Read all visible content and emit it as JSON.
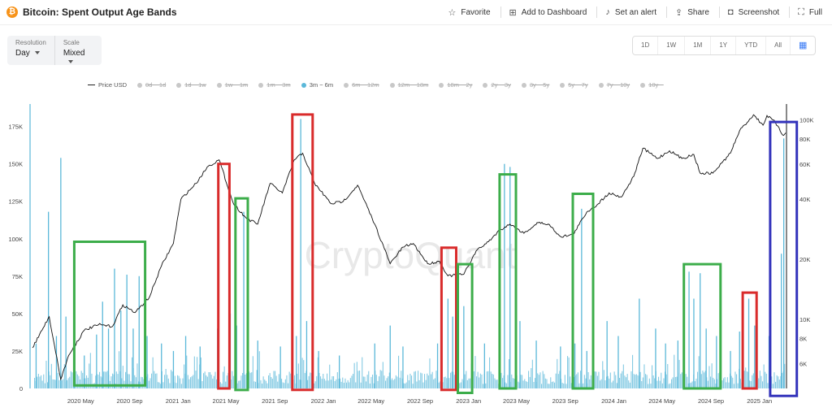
{
  "header": {
    "title": "Bitcoin: Spent Output Age Bands",
    "actions": [
      {
        "label": "Favorite",
        "icon": "star-icon"
      },
      {
        "label": "Add to Dashboard",
        "icon": "dashboard-icon"
      },
      {
        "label": "Set an alert",
        "icon": "bell-icon"
      },
      {
        "label": "Share",
        "icon": "share-icon"
      },
      {
        "label": "Screenshot",
        "icon": "camera-icon"
      },
      {
        "label": "Full",
        "icon": "fullscreen-icon"
      }
    ]
  },
  "controls": {
    "resolution_label": "Resolution",
    "resolution_value": "Day",
    "scale_label": "Scale",
    "scale_value": "Mixed"
  },
  "ranges": [
    "1D",
    "1W",
    "1M",
    "1Y",
    "YTD",
    "All"
  ],
  "legend": [
    {
      "label": "Price USD",
      "active": true,
      "kind": "line"
    },
    {
      "label": "0d ~ 1d",
      "active": false
    },
    {
      "label": "1d ~ 1w",
      "active": false
    },
    {
      "label": "1w ~ 1m",
      "active": false
    },
    {
      "label": "1m ~ 3m",
      "active": false
    },
    {
      "label": "3m ~ 6m",
      "active": true
    },
    {
      "label": "6m ~ 12m",
      "active": false
    },
    {
      "label": "12m ~ 18m",
      "active": false
    },
    {
      "label": "18m ~ 2y",
      "active": false
    },
    {
      "label": "2y ~ 3y",
      "active": false
    },
    {
      "label": "3y ~ 5y",
      "active": false
    },
    {
      "label": "5y ~ 7y",
      "active": false
    },
    {
      "label": "7y ~ 10y",
      "active": false
    },
    {
      "label": "10y ~",
      "active": false
    }
  ],
  "watermark": "CryptoQuant",
  "colors": {
    "bar": "#5bb8d9",
    "price": "#111111",
    "red": "#d92b2b",
    "green": "#3cad4a",
    "blue": "#3333bb"
  },
  "chart_data": {
    "type": "bar",
    "x_ticks": [
      "2020 May",
      "2020 Sep",
      "2021 Jan",
      "2021 May",
      "2021 Sep",
      "2022 Jan",
      "2022 May",
      "2022 Sep",
      "2023 Jan",
      "2023 May",
      "2023 Sep",
      "2024 Jan",
      "2024 May",
      "2024 Sep",
      "2025 Jan"
    ],
    "x_range": [
      "2020-01-01",
      "2025-03-10"
    ],
    "y_left_ticks": [
      "0",
      "25K",
      "50K",
      "75K",
      "100K",
      "125K",
      "150K",
      "175K"
    ],
    "y_left_range": [
      0,
      190000
    ],
    "y_right_ticks": [
      "6K",
      "8K",
      "10K",
      "20K",
      "40K",
      "60K",
      "80K",
      "100K"
    ],
    "y_right_scale": "log",
    "y_right_range": [
      4500,
      120000
    ],
    "series": [
      {
        "name": "3m ~ 6m",
        "axis": "left",
        "style": "bars",
        "peaks": [
          {
            "date": "2020-01-10",
            "value": 30000
          },
          {
            "date": "2020-02-10",
            "value": 118000
          },
          {
            "date": "2020-03-01",
            "value": 35000
          },
          {
            "date": "2020-03-12",
            "value": 154000
          },
          {
            "date": "2020-03-25",
            "value": 48000
          },
          {
            "date": "2020-04-15",
            "value": 25000
          },
          {
            "date": "2020-05-10",
            "value": 22000
          },
          {
            "date": "2020-06-10",
            "value": 36000
          },
          {
            "date": "2020-06-25",
            "value": 58000
          },
          {
            "date": "2020-07-10",
            "value": 40000
          },
          {
            "date": "2020-07-25",
            "value": 80000
          },
          {
            "date": "2020-08-10",
            "value": 52000
          },
          {
            "date": "2020-08-25",
            "value": 76000
          },
          {
            "date": "2020-09-10",
            "value": 40000
          },
          {
            "date": "2020-09-25",
            "value": 75000
          },
          {
            "date": "2020-10-15",
            "value": 35000
          },
          {
            "date": "2020-11-20",
            "value": 30000
          },
          {
            "date": "2020-12-20",
            "value": 25000
          },
          {
            "date": "2021-01-20",
            "value": 35000
          },
          {
            "date": "2021-02-25",
            "value": 28000
          },
          {
            "date": "2021-04-10",
            "value": 40000
          },
          {
            "date": "2021-05-12",
            "value": 50000
          },
          {
            "date": "2021-05-28",
            "value": 42000
          },
          {
            "date": "2021-06-15",
            "value": 118000
          },
          {
            "date": "2021-06-25",
            "value": 95000
          },
          {
            "date": "2021-07-20",
            "value": 32000
          },
          {
            "date": "2021-09-15",
            "value": 28000
          },
          {
            "date": "2021-10-25",
            "value": 35000
          },
          {
            "date": "2021-11-05",
            "value": 180000
          },
          {
            "date": "2021-11-20",
            "value": 45000
          },
          {
            "date": "2021-12-20",
            "value": 25000
          },
          {
            "date": "2022-02-10",
            "value": 22000
          },
          {
            "date": "2022-05-10",
            "value": 30000
          },
          {
            "date": "2022-06-18",
            "value": 42000
          },
          {
            "date": "2022-07-20",
            "value": 28000
          },
          {
            "date": "2022-10-15",
            "value": 30000
          },
          {
            "date": "2022-11-10",
            "value": 60000
          },
          {
            "date": "2022-11-22",
            "value": 48000
          },
          {
            "date": "2022-12-20",
            "value": 55000
          },
          {
            "date": "2023-02-10",
            "value": 30000
          },
          {
            "date": "2023-03-20",
            "value": 40000
          },
          {
            "date": "2023-04-01",
            "value": 150000
          },
          {
            "date": "2023-04-15",
            "value": 148000
          },
          {
            "date": "2023-05-10",
            "value": 45000
          },
          {
            "date": "2023-06-20",
            "value": 32000
          },
          {
            "date": "2023-08-20",
            "value": 28000
          },
          {
            "date": "2023-09-25",
            "value": 30000
          },
          {
            "date": "2023-10-12",
            "value": 120000
          },
          {
            "date": "2023-10-25",
            "value": 25000
          },
          {
            "date": "2023-12-15",
            "value": 45000
          },
          {
            "date": "2024-01-12",
            "value": 35000
          },
          {
            "date": "2024-03-05",
            "value": 60000
          },
          {
            "date": "2024-04-15",
            "value": 40000
          },
          {
            "date": "2024-05-10",
            "value": 30000
          },
          {
            "date": "2024-06-10",
            "value": 32000
          },
          {
            "date": "2024-07-08",
            "value": 78000
          },
          {
            "date": "2024-07-20",
            "value": 60000
          },
          {
            "date": "2024-08-05",
            "value": 77000
          },
          {
            "date": "2024-08-20",
            "value": 40000
          },
          {
            "date": "2024-09-15",
            "value": 35000
          },
          {
            "date": "2024-10-20",
            "value": 25000
          },
          {
            "date": "2024-11-12",
            "value": 38000
          },
          {
            "date": "2024-12-05",
            "value": 60000
          },
          {
            "date": "2024-12-20",
            "value": 42000
          },
          {
            "date": "2025-01-25",
            "value": 35000
          },
          {
            "date": "2025-02-25",
            "value": 90000
          },
          {
            "date": "2025-03-03",
            "value": 167000
          }
        ]
      },
      {
        "name": "Price USD",
        "axis": "right",
        "style": "line",
        "points": [
          {
            "date": "2020-01-01",
            "value": 7200
          },
          {
            "date": "2020-02-12",
            "value": 10300
          },
          {
            "date": "2020-03-12",
            "value": 5000
          },
          {
            "date": "2020-04-01",
            "value": 6600
          },
          {
            "date": "2020-05-10",
            "value": 8800
          },
          {
            "date": "2020-06-15",
            "value": 9400
          },
          {
            "date": "2020-07-20",
            "value": 9200
          },
          {
            "date": "2020-08-15",
            "value": 11800
          },
          {
            "date": "2020-09-15",
            "value": 10800
          },
          {
            "date": "2020-10-20",
            "value": 12800
          },
          {
            "date": "2020-11-20",
            "value": 18500
          },
          {
            "date": "2020-12-20",
            "value": 24000
          },
          {
            "date": "2021-01-08",
            "value": 40000
          },
          {
            "date": "2021-02-15",
            "value": 48000
          },
          {
            "date": "2021-03-15",
            "value": 58000
          },
          {
            "date": "2021-04-14",
            "value": 63000
          },
          {
            "date": "2021-05-20",
            "value": 38000
          },
          {
            "date": "2021-06-22",
            "value": 32000
          },
          {
            "date": "2021-07-20",
            "value": 30000
          },
          {
            "date": "2021-08-20",
            "value": 48000
          },
          {
            "date": "2021-09-20",
            "value": 43000
          },
          {
            "date": "2021-10-20",
            "value": 63000
          },
          {
            "date": "2021-11-10",
            "value": 68000
          },
          {
            "date": "2021-12-10",
            "value": 48000
          },
          {
            "date": "2022-01-20",
            "value": 38000
          },
          {
            "date": "2022-02-20",
            "value": 39000
          },
          {
            "date": "2022-03-28",
            "value": 47000
          },
          {
            "date": "2022-05-10",
            "value": 30000
          },
          {
            "date": "2022-06-18",
            "value": 19000
          },
          {
            "date": "2022-07-20",
            "value": 23000
          },
          {
            "date": "2022-08-15",
            "value": 24000
          },
          {
            "date": "2022-09-20",
            "value": 19000
          },
          {
            "date": "2022-10-20",
            "value": 19500
          },
          {
            "date": "2022-11-10",
            "value": 16500
          },
          {
            "date": "2022-12-20",
            "value": 16800
          },
          {
            "date": "2023-01-20",
            "value": 22000
          },
          {
            "date": "2023-02-20",
            "value": 24500
          },
          {
            "date": "2023-03-20",
            "value": 28000
          },
          {
            "date": "2023-04-15",
            "value": 30000
          },
          {
            "date": "2023-05-20",
            "value": 27000
          },
          {
            "date": "2023-06-25",
            "value": 30500
          },
          {
            "date": "2023-07-20",
            "value": 30000
          },
          {
            "date": "2023-08-20",
            "value": 26000
          },
          {
            "date": "2023-09-20",
            "value": 26500
          },
          {
            "date": "2023-10-25",
            "value": 34500
          },
          {
            "date": "2023-11-20",
            "value": 37500
          },
          {
            "date": "2023-12-20",
            "value": 43000
          },
          {
            "date": "2024-01-20",
            "value": 41000
          },
          {
            "date": "2024-02-20",
            "value": 52000
          },
          {
            "date": "2024-03-14",
            "value": 72000
          },
          {
            "date": "2024-04-20",
            "value": 64000
          },
          {
            "date": "2024-05-20",
            "value": 70000
          },
          {
            "date": "2024-06-20",
            "value": 64000
          },
          {
            "date": "2024-07-20",
            "value": 67000
          },
          {
            "date": "2024-08-05",
            "value": 54000
          },
          {
            "date": "2024-09-06",
            "value": 54000
          },
          {
            "date": "2024-10-20",
            "value": 68000
          },
          {
            "date": "2024-11-12",
            "value": 88000
          },
          {
            "date": "2024-12-17",
            "value": 106000
          },
          {
            "date": "2025-01-10",
            "value": 94000
          },
          {
            "date": "2025-01-20",
            "value": 105000
          },
          {
            "date": "2025-02-10",
            "value": 97000
          },
          {
            "date": "2025-02-28",
            "value": 84000
          },
          {
            "date": "2025-03-08",
            "value": 86000
          }
        ]
      }
    ],
    "annotations": [
      {
        "color": "green",
        "from": "2020-04-15",
        "to": "2020-10-10",
        "top": 98000,
        "bottom": 2000
      },
      {
        "color": "red",
        "from": "2021-04-12",
        "to": "2021-05-10",
        "top": 150000,
        "bottom": 0
      },
      {
        "color": "green",
        "from": "2021-05-25",
        "to": "2021-06-25",
        "top": 127000,
        "bottom": -1000
      },
      {
        "color": "red",
        "from": "2021-10-15",
        "to": "2021-12-05",
        "top": 183000,
        "bottom": -1000
      },
      {
        "color": "red",
        "from": "2022-10-25",
        "to": "2022-12-01",
        "top": 94000,
        "bottom": -1000
      },
      {
        "color": "green",
        "from": "2022-12-05",
        "to": "2023-01-10",
        "top": 83000,
        "bottom": -3000
      },
      {
        "color": "green",
        "from": "2023-03-20",
        "to": "2023-04-30",
        "top": 143000,
        "bottom": 0
      },
      {
        "color": "green",
        "from": "2023-09-20",
        "to": "2023-11-10",
        "top": 130000,
        "bottom": 0
      },
      {
        "color": "green",
        "from": "2024-06-25",
        "to": "2024-09-25",
        "top": 83000,
        "bottom": 0
      },
      {
        "color": "red",
        "from": "2024-11-20",
        "to": "2024-12-25",
        "top": 64000,
        "bottom": 0
      },
      {
        "color": "blue",
        "from": "2025-01-28",
        "to": "2025-04-05",
        "top": 178000,
        "bottom": -5000
      }
    ]
  }
}
